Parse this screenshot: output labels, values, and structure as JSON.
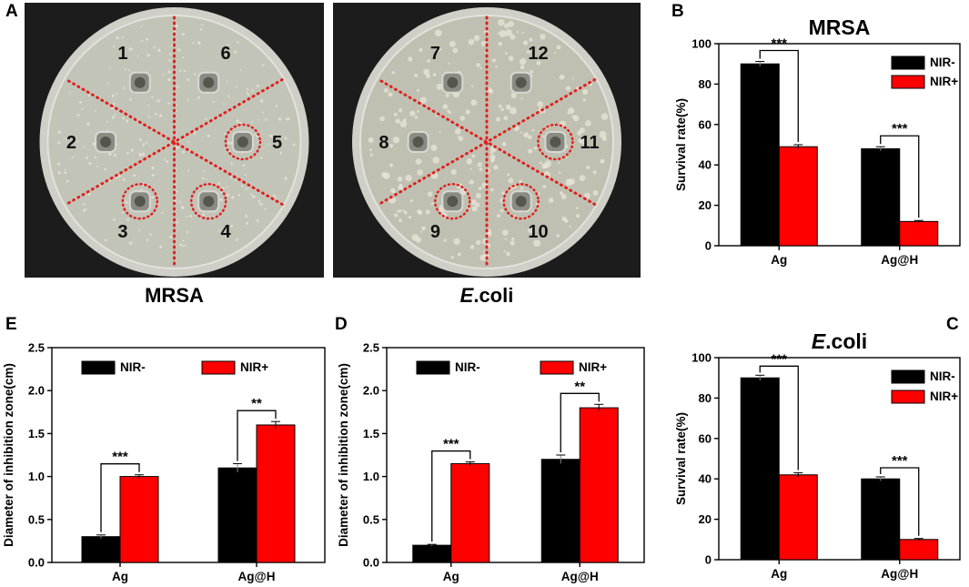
{
  "panels": {
    "A": {
      "letter": "A",
      "plates": [
        {
          "caption_pre": "",
          "caption_italic": "",
          "caption_post": "MRSA",
          "wells": [
            "1",
            "2",
            "3",
            "4",
            "5",
            "6"
          ]
        },
        {
          "caption_pre": "",
          "caption_italic": "E",
          "caption_post": ".coli",
          "wells": [
            "7",
            "8",
            "9",
            "10",
            "11",
            "12"
          ]
        }
      ]
    },
    "B": {
      "letter": "B"
    },
    "C": {
      "letter": "C"
    },
    "D": {
      "letter": "D"
    },
    "E": {
      "letter": "E"
    }
  },
  "colors": {
    "NIR-": "#000000",
    "NIR+": "#ff0000"
  },
  "chart_data": [
    {
      "id": "B",
      "type": "bar",
      "title": "MRSA",
      "title_italic": "",
      "categories": [
        "Ag",
        "Ag@H"
      ],
      "series": [
        {
          "name": "NIR-",
          "values": [
            90,
            48
          ],
          "errors": [
            1.2,
            1.0
          ]
        },
        {
          "name": "NIR+",
          "values": [
            49,
            12
          ],
          "errors": [
            1.0,
            0.5
          ]
        }
      ],
      "ylabel": "Survival rate(%)",
      "xlabel": "",
      "ylim": [
        0,
        100
      ],
      "yticks": [
        0,
        20,
        40,
        60,
        80,
        100
      ],
      "ytick_labels": [
        "0",
        "20",
        "40",
        "60",
        "80",
        "100"
      ],
      "significance": [
        "***",
        "***"
      ],
      "legend": "top-right"
    },
    {
      "id": "C",
      "type": "bar",
      "title": ".coli",
      "title_italic": "E",
      "categories": [
        "Ag",
        "Ag@H"
      ],
      "series": [
        {
          "name": "NIR-",
          "values": [
            90,
            40
          ],
          "errors": [
            1.3,
            1.0
          ]
        },
        {
          "name": "NIR+",
          "values": [
            42,
            10
          ],
          "errors": [
            1.0,
            0.5
          ]
        }
      ],
      "ylabel": "Survival rate(%)",
      "xlabel": "",
      "ylim": [
        0,
        100
      ],
      "yticks": [
        0,
        20,
        40,
        60,
        80,
        100
      ],
      "ytick_labels": [
        "0",
        "20",
        "40",
        "60",
        "80",
        "100"
      ],
      "significance": [
        "***",
        "***"
      ],
      "legend": "top-right"
    },
    {
      "id": "D",
      "type": "bar",
      "title": "",
      "title_italic": "",
      "categories": [
        "Ag",
        "Ag@H"
      ],
      "series": [
        {
          "name": "NIR-",
          "values": [
            0.2,
            1.2
          ],
          "errors": [
            0.01,
            0.05
          ]
        },
        {
          "name": "NIR+",
          "values": [
            1.15,
            1.8
          ],
          "errors": [
            0.02,
            0.04
          ]
        }
      ],
      "ylabel": "Diameter of inhibition zone(cm)",
      "xlabel": "",
      "ylim": [
        0,
        2.5
      ],
      "yticks": [
        0,
        0.5,
        1.0,
        1.5,
        2.0,
        2.5
      ],
      "ytick_labels": [
        "0.0",
        "0.5",
        "1.0",
        "1.5",
        "2.0",
        "2.5"
      ],
      "significance": [
        "***",
        "**"
      ],
      "legend": "top"
    },
    {
      "id": "E",
      "type": "bar",
      "title": "",
      "title_italic": "",
      "categories": [
        "Ag",
        "Ag@H"
      ],
      "series": [
        {
          "name": "NIR-",
          "values": [
            0.3,
            1.1
          ],
          "errors": [
            0.02,
            0.05
          ]
        },
        {
          "name": "NIR+",
          "values": [
            1.0,
            1.6
          ],
          "errors": [
            0.02,
            0.04
          ]
        }
      ],
      "ylabel": "Diameter of inhibition zone(cm)",
      "xlabel": "",
      "ylim": [
        0,
        2.5
      ],
      "yticks": [
        0,
        0.5,
        1.0,
        1.5,
        2.0,
        2.5
      ],
      "ytick_labels": [
        "0.0",
        "0.5",
        "1.0",
        "1.5",
        "2.0",
        "2.5"
      ],
      "significance": [
        "***",
        "**"
      ],
      "legend": "top"
    }
  ]
}
